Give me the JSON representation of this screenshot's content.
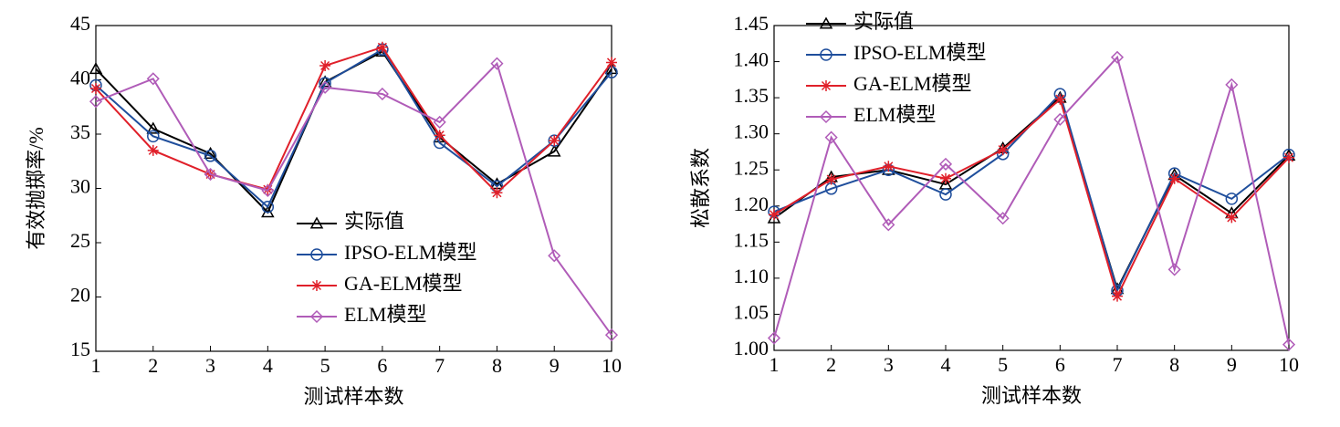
{
  "chart_data": [
    {
      "type": "line",
      "ylabel": "有效抛掷率/%",
      "xlabel": "测试样本数",
      "x": [
        1,
        2,
        3,
        4,
        5,
        6,
        7,
        8,
        9,
        10
      ],
      "xlim": [
        1,
        10
      ],
      "xticks": [
        1,
        2,
        3,
        4,
        5,
        6,
        7,
        8,
        9,
        10
      ],
      "ylim": [
        15,
        45
      ],
      "yticks": [
        15,
        20,
        25,
        30,
        35,
        40,
        45
      ],
      "legend": "lower center",
      "series": [
        {
          "name": "实际值",
          "color": "#000000",
          "marker": "triangle",
          "values": [
            41,
            35.5,
            33.2,
            27.8,
            39.8,
            42.6,
            34.7,
            30.4,
            33.4,
            41
          ]
        },
        {
          "name": "IPSO-ELM模型",
          "color": "#1f4e9c",
          "marker": "circle",
          "values": [
            39.5,
            34.8,
            33.0,
            28.3,
            39.7,
            42.8,
            34.2,
            30.2,
            34.4,
            40.7
          ]
        },
        {
          "name": "GA-ELM模型",
          "color": "#e0202a",
          "marker": "star",
          "values": [
            39.2,
            33.5,
            31.3,
            29.9,
            41.3,
            43.0,
            34.9,
            29.6,
            34.4,
            41.6
          ]
        },
        {
          "name": "ELM模型",
          "color": "#b05cb8",
          "marker": "diamond",
          "values": [
            38.0,
            40.1,
            31.3,
            29.8,
            39.3,
            38.7,
            36.1,
            41.5,
            23.8,
            16.5
          ]
        }
      ]
    },
    {
      "type": "line",
      "ylabel": "松散系数",
      "xlabel": "测试样本数",
      "x": [
        1,
        2,
        3,
        4,
        5,
        6,
        7,
        8,
        9,
        10
      ],
      "xlim": [
        1,
        10
      ],
      "xticks": [
        1,
        2,
        3,
        4,
        5,
        6,
        7,
        8,
        9,
        10
      ],
      "ylim": [
        1,
        1.45
      ],
      "yticks": [
        {
          "value": 1,
          "label": "1.00"
        },
        1.05,
        {
          "value": 1.1,
          "label": "1.10"
        },
        1.15,
        {
          "value": 1.2,
          "label": "1.20"
        },
        1.25,
        {
          "value": 1.3,
          "label": "1.30"
        },
        1.35,
        {
          "value": 1.4,
          "label": "1.40"
        },
        1.45
      ],
      "legend": "upper left",
      "series": [
        {
          "name": "实际值",
          "color": "#000000",
          "marker": "triangle",
          "values": [
            1.183,
            1.24,
            1.25,
            1.23,
            1.28,
            1.35,
            1.085,
            1.243,
            1.19,
            1.27
          ]
        },
        {
          "name": "IPSO-ELM模型",
          "color": "#1f4e9c",
          "marker": "circle",
          "values": [
            1.192,
            1.224,
            1.25,
            1.216,
            1.272,
            1.355,
            1.083,
            1.245,
            1.21,
            1.271
          ]
        },
        {
          "name": "GA-ELM模型",
          "color": "#e0202a",
          "marker": "star",
          "values": [
            1.188,
            1.237,
            1.255,
            1.238,
            1.278,
            1.348,
            1.075,
            1.238,
            1.184,
            1.267
          ]
        },
        {
          "name": "ELM模型",
          "color": "#b05cb8",
          "marker": "diamond",
          "values": [
            1.017,
            1.295,
            1.174,
            1.258,
            1.183,
            1.32,
            1.406,
            1.112,
            1.368,
            1.008
          ]
        }
      ]
    }
  ]
}
